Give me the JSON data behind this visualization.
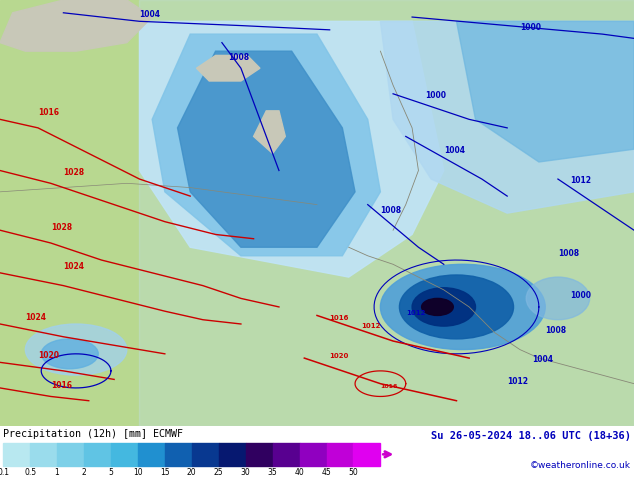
{
  "title_left": "Precipitation (12h) [mm] ECMWF",
  "title_right": "Su 26-05-2024 18..06 UTC (18+36)",
  "credit": "©weatheronline.co.uk",
  "colorbar_labels": [
    "0.1",
    "0.5",
    "1",
    "2",
    "5",
    "10",
    "15",
    "20",
    "25",
    "30",
    "35",
    "40",
    "45",
    "50"
  ],
  "colorbar_colors": [
    "#b8e8f0",
    "#9adcec",
    "#7dd0e8",
    "#60c4e4",
    "#44b8e0",
    "#2090d0",
    "#1060b0",
    "#083890",
    "#061870",
    "#300060",
    "#580090",
    "#9000c0",
    "#c000d8",
    "#e000f0"
  ],
  "bg_color": "#ffffff",
  "land_color": "#b8d890",
  "sea_color": "#d8eef8",
  "figsize": [
    6.34,
    4.9
  ],
  "dpi": 100,
  "blue_isobar_color": "#0000bb",
  "red_isobar_color": "#cc0000",
  "land_gray": "#c8c8b8"
}
